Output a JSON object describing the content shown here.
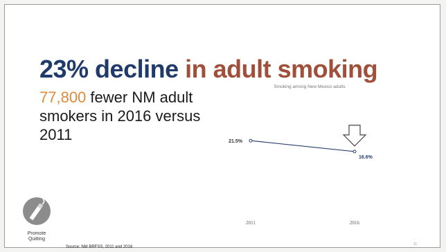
{
  "headline": {
    "part1": "23% decline",
    "part2": "in adult smoking"
  },
  "subhead": {
    "number": "77,800",
    "text": "fewer NM adult smokers in 2016 versus 2011"
  },
  "chart_data": {
    "type": "line",
    "title": "Smoking among New Mexico adults",
    "categories": [
      "2011",
      "2016"
    ],
    "series": [
      {
        "values": [
          21.5,
          16.6
        ],
        "labels": [
          "21.5%",
          "16.6%"
        ]
      }
    ],
    "annotation": "down-arrow"
  },
  "logo": {
    "caption_line1": "Promote",
    "caption_line2": "Quitting"
  },
  "source": "Source: NM BRFSS, 2011 and 2016",
  "slide_number": "11",
  "colors": {
    "title_blue": "#1f3a6b",
    "title_rust": "#a0503a",
    "highlight_orange": "#e08a3a",
    "line": "#2b3f70"
  }
}
